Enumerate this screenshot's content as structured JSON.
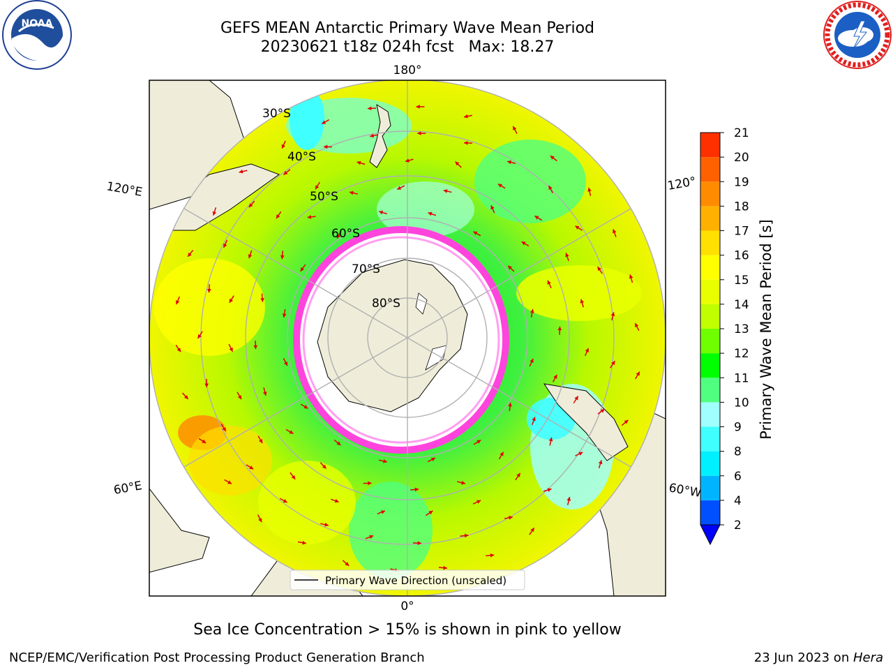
{
  "header": {
    "title_line1": "GEFS MEAN Antarctic Primary Wave Mean Period",
    "title_line2": "20230621 t18z 024h fcst   Max: 18.27"
  },
  "logos": {
    "noaa_text": "NOAA",
    "nws_text": "NATIONAL WEATHER SERVICE"
  },
  "chart_data": {
    "type": "heatmap",
    "projection": "south polar stereographic",
    "title": "GEFS MEAN Antarctic Primary Wave Mean Period",
    "subtitle": "20230621 t18z 024h fcst   Max: 18.27",
    "max_value": 18.27,
    "longitude_labels": [
      "180°",
      "120°E",
      "120°",
      "60°E",
      "60°W",
      "0°"
    ],
    "latitude_labels": [
      "30°S",
      "40°S",
      "50°S",
      "60°S",
      "70°S",
      "80°S"
    ],
    "legend": {
      "entry": "Primary Wave Direction (unscaled)",
      "placement": "lower center"
    },
    "colorbar": {
      "label": "Primary Wave Mean Period [s]",
      "ticks": [
        2,
        4,
        6,
        8,
        9,
        10,
        11,
        12,
        13,
        14,
        15,
        16,
        17,
        18,
        19,
        20,
        21
      ],
      "colors": [
        "#0050ff",
        "#00b4ff",
        "#00f0ff",
        "#40ffff",
        "#a0ffff",
        "#50ff80",
        "#00ff00",
        "#70ff00",
        "#c0ff00",
        "#e8ff00",
        "#ffff00",
        "#ffe000",
        "#ffb000",
        "#ff8c00",
        "#ff6000",
        "#ff3000",
        "#ff0000"
      ],
      "extend": "min",
      "extend_color": "#0000ff"
    },
    "grid": true,
    "colors": {
      "land": "#efedd9",
      "ocean_base": "#d8f500",
      "ice_sheet": "#ffffff",
      "sea_ice_edge": "#ff44dd",
      "arrows": "#e00000",
      "graticule": "#b0b0b0"
    }
  },
  "annotation": {
    "sea_ice_note": "Sea Ice Concentration > 15% is shown in pink to yellow"
  },
  "footer": {
    "left": "NCEP/EMC/Verification Post Processing Product Generation Branch",
    "right_date": "23 Jun 2023 on ",
    "right_host": "Hera"
  }
}
